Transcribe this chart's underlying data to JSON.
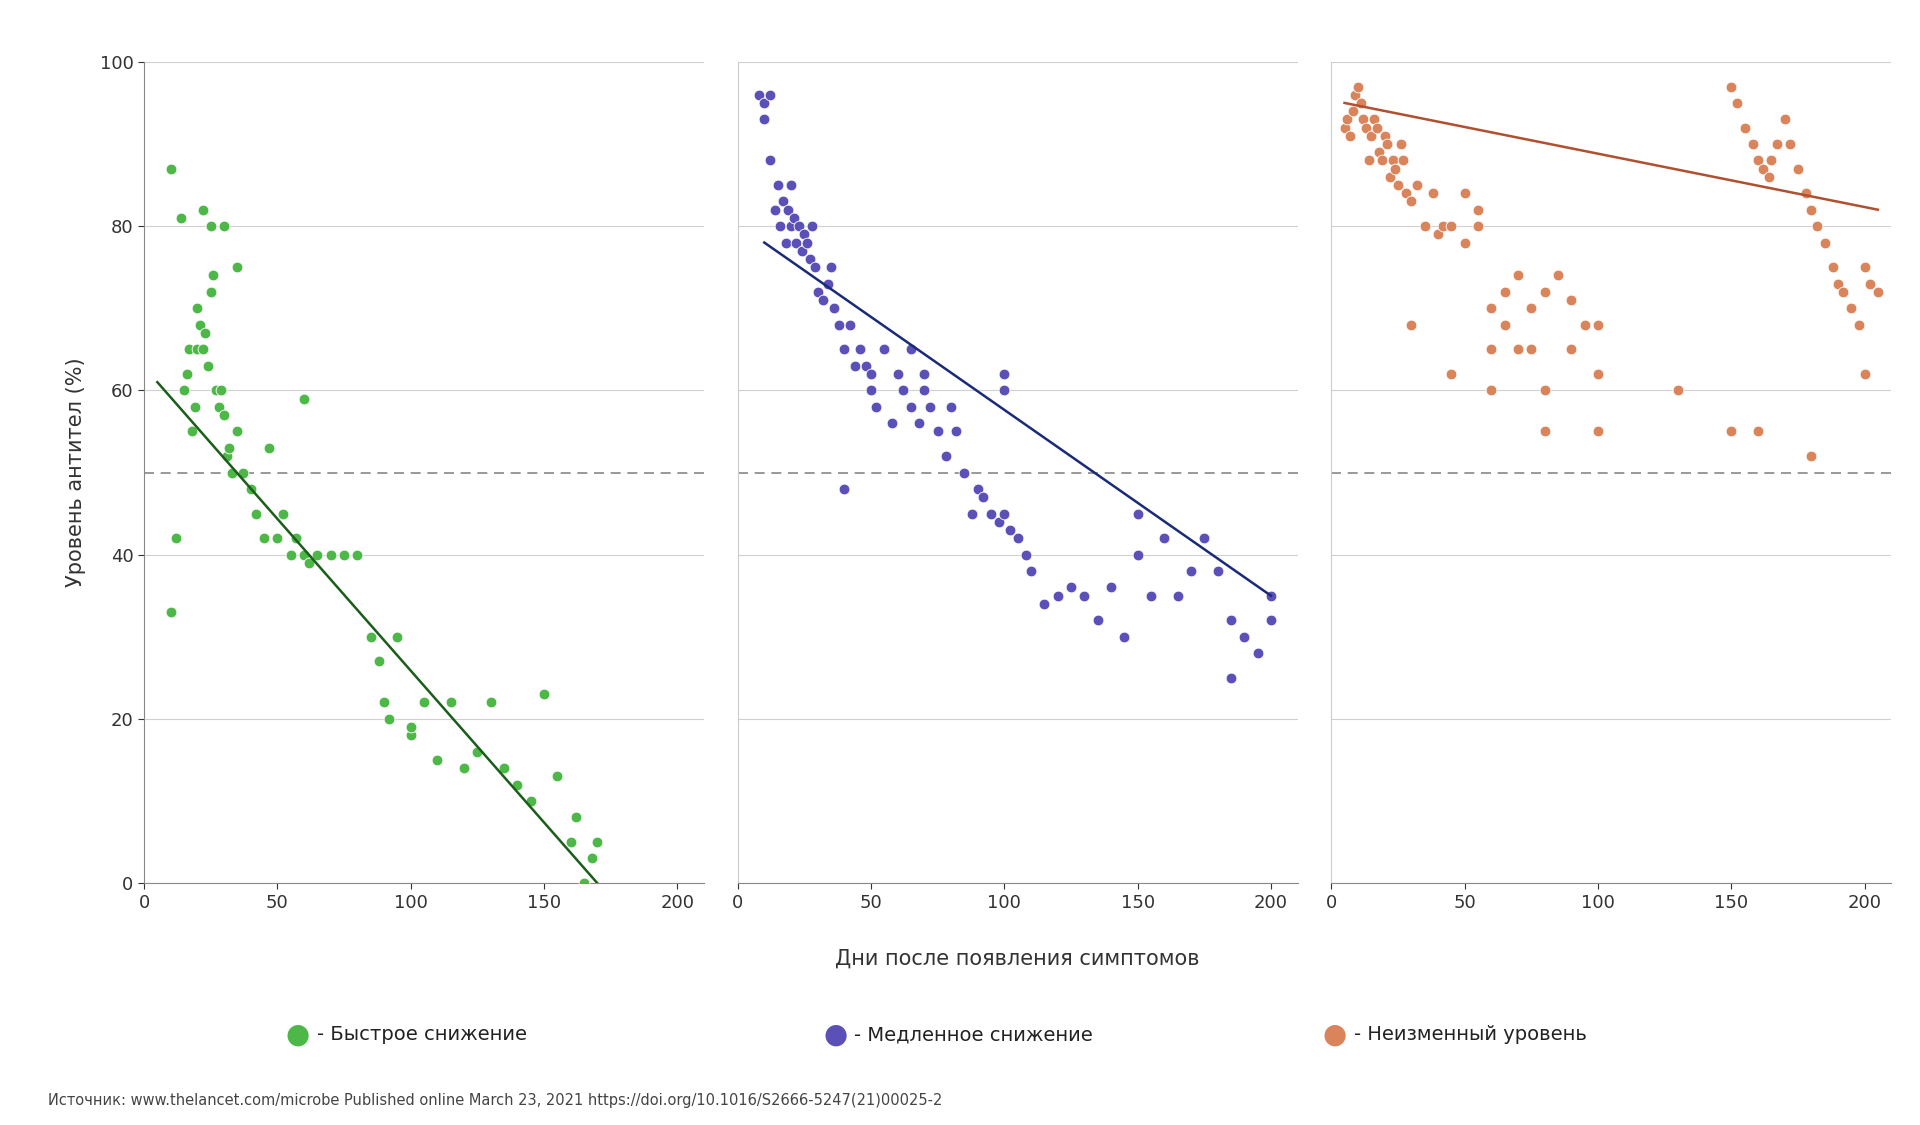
{
  "background_color": "#ffffff",
  "ylabel": "Уровень антител (%)",
  "xlabel": "Дни после появления симптомов",
  "source_text": "Источник: www.thelancet.com/microbe Published online March 23, 2021 https://doi.org/10.1016/S2666-5247(21)00025-2",
  "ylim": [
    0,
    100
  ],
  "xlim": [
    0,
    210
  ],
  "yticks": [
    0,
    20,
    40,
    60,
    80,
    100
  ],
  "xticks": [
    0,
    50,
    100,
    150,
    200
  ],
  "dashed_line_y": 50,
  "legend_labels": [
    "- Быстрое снижение",
    "- Медленное снижение",
    "- Неизменный уровень"
  ],
  "colors": [
    "#4db848",
    "#5b50b8",
    "#d9845a"
  ],
  "line_colors": [
    "#1a5e1a",
    "#1a2a7a",
    "#b05030"
  ],
  "green_x": [
    10,
    12,
    15,
    16,
    17,
    18,
    19,
    20,
    20,
    21,
    22,
    23,
    24,
    25,
    26,
    27,
    28,
    29,
    30,
    31,
    32,
    33,
    35,
    37,
    40,
    42,
    45,
    47,
    50,
    52,
    55,
    57,
    60,
    62,
    65,
    70,
    75,
    80,
    85,
    88,
    90,
    92,
    95,
    100,
    100,
    105,
    110,
    115,
    120,
    125,
    130,
    135,
    140,
    145,
    150,
    155,
    160,
    162,
    165,
    168,
    170
  ],
  "green_y": [
    33,
    42,
    60,
    62,
    65,
    55,
    58,
    65,
    70,
    68,
    65,
    67,
    63,
    72,
    74,
    60,
    58,
    60,
    57,
    52,
    53,
    50,
    55,
    50,
    48,
    45,
    42,
    53,
    42,
    45,
    40,
    42,
    40,
    39,
    40,
    40,
    40,
    40,
    30,
    27,
    22,
    20,
    30,
    18,
    19,
    22,
    15,
    22,
    14,
    16,
    22,
    14,
    12,
    10,
    23,
    13,
    5,
    8,
    0,
    3,
    5
  ],
  "green_high_x": [
    10,
    14,
    22,
    25,
    30,
    35,
    60
  ],
  "green_high_y": [
    87,
    81,
    82,
    80,
    80,
    75,
    59
  ],
  "green_line_x1": 5,
  "green_line_y1": 61,
  "green_line_x2": 170,
  "green_line_y2": 0,
  "purple_x": [
    10,
    12,
    14,
    15,
    16,
    17,
    18,
    19,
    20,
    21,
    22,
    23,
    24,
    25,
    26,
    27,
    28,
    29,
    30,
    32,
    34,
    36,
    38,
    40,
    42,
    44,
    46,
    48,
    50,
    52,
    55,
    58,
    60,
    62,
    65,
    68,
    70,
    72,
    75,
    78,
    80,
    82,
    85,
    88,
    90,
    92,
    95,
    98,
    100,
    102,
    105,
    108,
    110,
    115,
    120,
    125,
    130,
    135,
    140,
    145,
    150,
    155,
    160,
    165,
    170,
    175,
    180,
    185,
    190,
    195,
    200
  ],
  "purple_y": [
    93,
    88,
    82,
    85,
    80,
    83,
    78,
    82,
    80,
    81,
    78,
    80,
    77,
    79,
    78,
    76,
    80,
    75,
    72,
    71,
    73,
    70,
    68,
    65,
    68,
    63,
    65,
    63,
    60,
    58,
    65,
    56,
    62,
    60,
    58,
    56,
    60,
    58,
    55,
    52,
    58,
    55,
    50,
    45,
    48,
    47,
    45,
    44,
    45,
    43,
    42,
    40,
    38,
    34,
    35,
    36,
    35,
    32,
    36,
    30,
    40,
    35,
    42,
    35,
    38,
    42,
    38,
    32,
    30,
    28,
    35
  ],
  "purple_high_x": [
    8,
    10,
    12,
    20,
    35,
    50,
    70,
    100
  ],
  "purple_high_y": [
    96,
    95,
    96,
    85,
    75,
    62,
    62,
    62
  ],
  "purple_isolated_x": [
    40,
    65,
    100,
    150,
    185,
    200
  ],
  "purple_isolated_y": [
    48,
    65,
    60,
    45,
    25,
    32
  ],
  "purple_line_x1": 10,
  "purple_line_y1": 78,
  "purple_line_x2": 200,
  "purple_line_y2": 35,
  "orange_x": [
    5,
    6,
    7,
    8,
    9,
    10,
    11,
    12,
    13,
    14,
    15,
    16,
    17,
    18,
    19,
    20,
    21,
    22,
    23,
    24,
    25,
    26,
    27,
    28,
    30,
    32,
    35,
    38,
    40,
    42,
    45,
    50,
    55,
    60,
    65,
    70,
    75,
    80,
    85,
    90,
    95,
    100
  ],
  "orange_y": [
    92,
    93,
    91,
    94,
    96,
    97,
    95,
    93,
    92,
    88,
    91,
    93,
    92,
    89,
    88,
    91,
    90,
    86,
    88,
    87,
    85,
    90,
    88,
    84,
    83,
    85,
    80,
    84,
    79,
    80,
    80,
    78,
    82,
    70,
    72,
    74,
    70,
    72,
    74,
    71,
    68,
    68
  ],
  "orange_mid_x": [
    50,
    55,
    60,
    65,
    70,
    75,
    80,
    90,
    100
  ],
  "orange_mid_y": [
    84,
    80,
    65,
    68,
    65,
    65,
    60,
    65,
    62
  ],
  "orange_late_x": [
    150,
    152,
    155,
    158,
    160,
    162,
    164,
    165,
    167,
    170,
    172,
    175,
    178,
    180,
    182,
    185,
    188,
    190,
    192,
    195,
    198,
    200,
    202,
    205
  ],
  "orange_late_y": [
    97,
    95,
    92,
    90,
    88,
    87,
    86,
    88,
    90,
    93,
    90,
    87,
    84,
    82,
    80,
    78,
    75,
    73,
    72,
    70,
    68,
    75,
    73,
    72
  ],
  "orange_scattered_x": [
    30,
    45,
    60,
    80,
    100,
    130,
    150,
    160,
    180,
    200
  ],
  "orange_scattered_y": [
    68,
    62,
    60,
    55,
    55,
    60,
    55,
    55,
    52,
    62
  ],
  "orange_line_x1": 5,
  "orange_line_y1": 95,
  "orange_line_x2": 205,
  "orange_line_y2": 82
}
